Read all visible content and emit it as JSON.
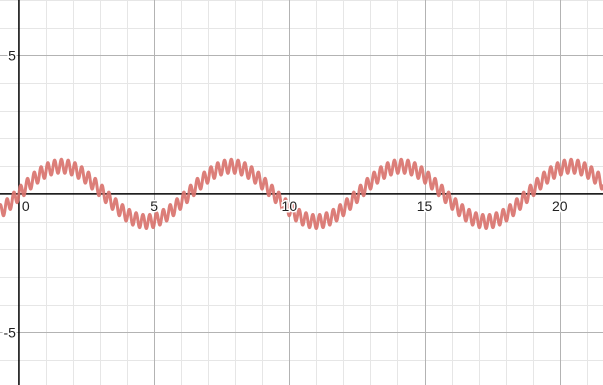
{
  "chart_data": {
    "type": "line",
    "title": "",
    "xlabel": "",
    "ylabel": "",
    "xlim": [
      -0.7,
      21.6
    ],
    "ylim": [
      -6.9,
      7.0
    ],
    "grid": true,
    "minor_grid_step": 1,
    "major_grid_step": 5,
    "x_ticks": [
      {
        "value": 0,
        "label": "0"
      },
      {
        "value": 5,
        "label": "5"
      },
      {
        "value": 10,
        "label": "10"
      },
      {
        "value": 15,
        "label": "15"
      },
      {
        "value": 20,
        "label": "20"
      }
    ],
    "y_ticks": [
      {
        "value": 5,
        "label": "5"
      },
      {
        "value": -5,
        "label": "-5"
      }
    ],
    "series": [
      {
        "function": "y = sin(x) + 0.25*sin(25x)",
        "terms": [
          {
            "amplitude": 1.0,
            "frequency": 1
          },
          {
            "amplitude": 0.25,
            "frequency": 25
          }
        ],
        "color": "#d9736e"
      }
    ],
    "colors": {
      "background": "#ffffff",
      "minor_grid": "#e6e6e6",
      "major_grid": "#b3b3b3",
      "axis": "#000000"
    }
  }
}
